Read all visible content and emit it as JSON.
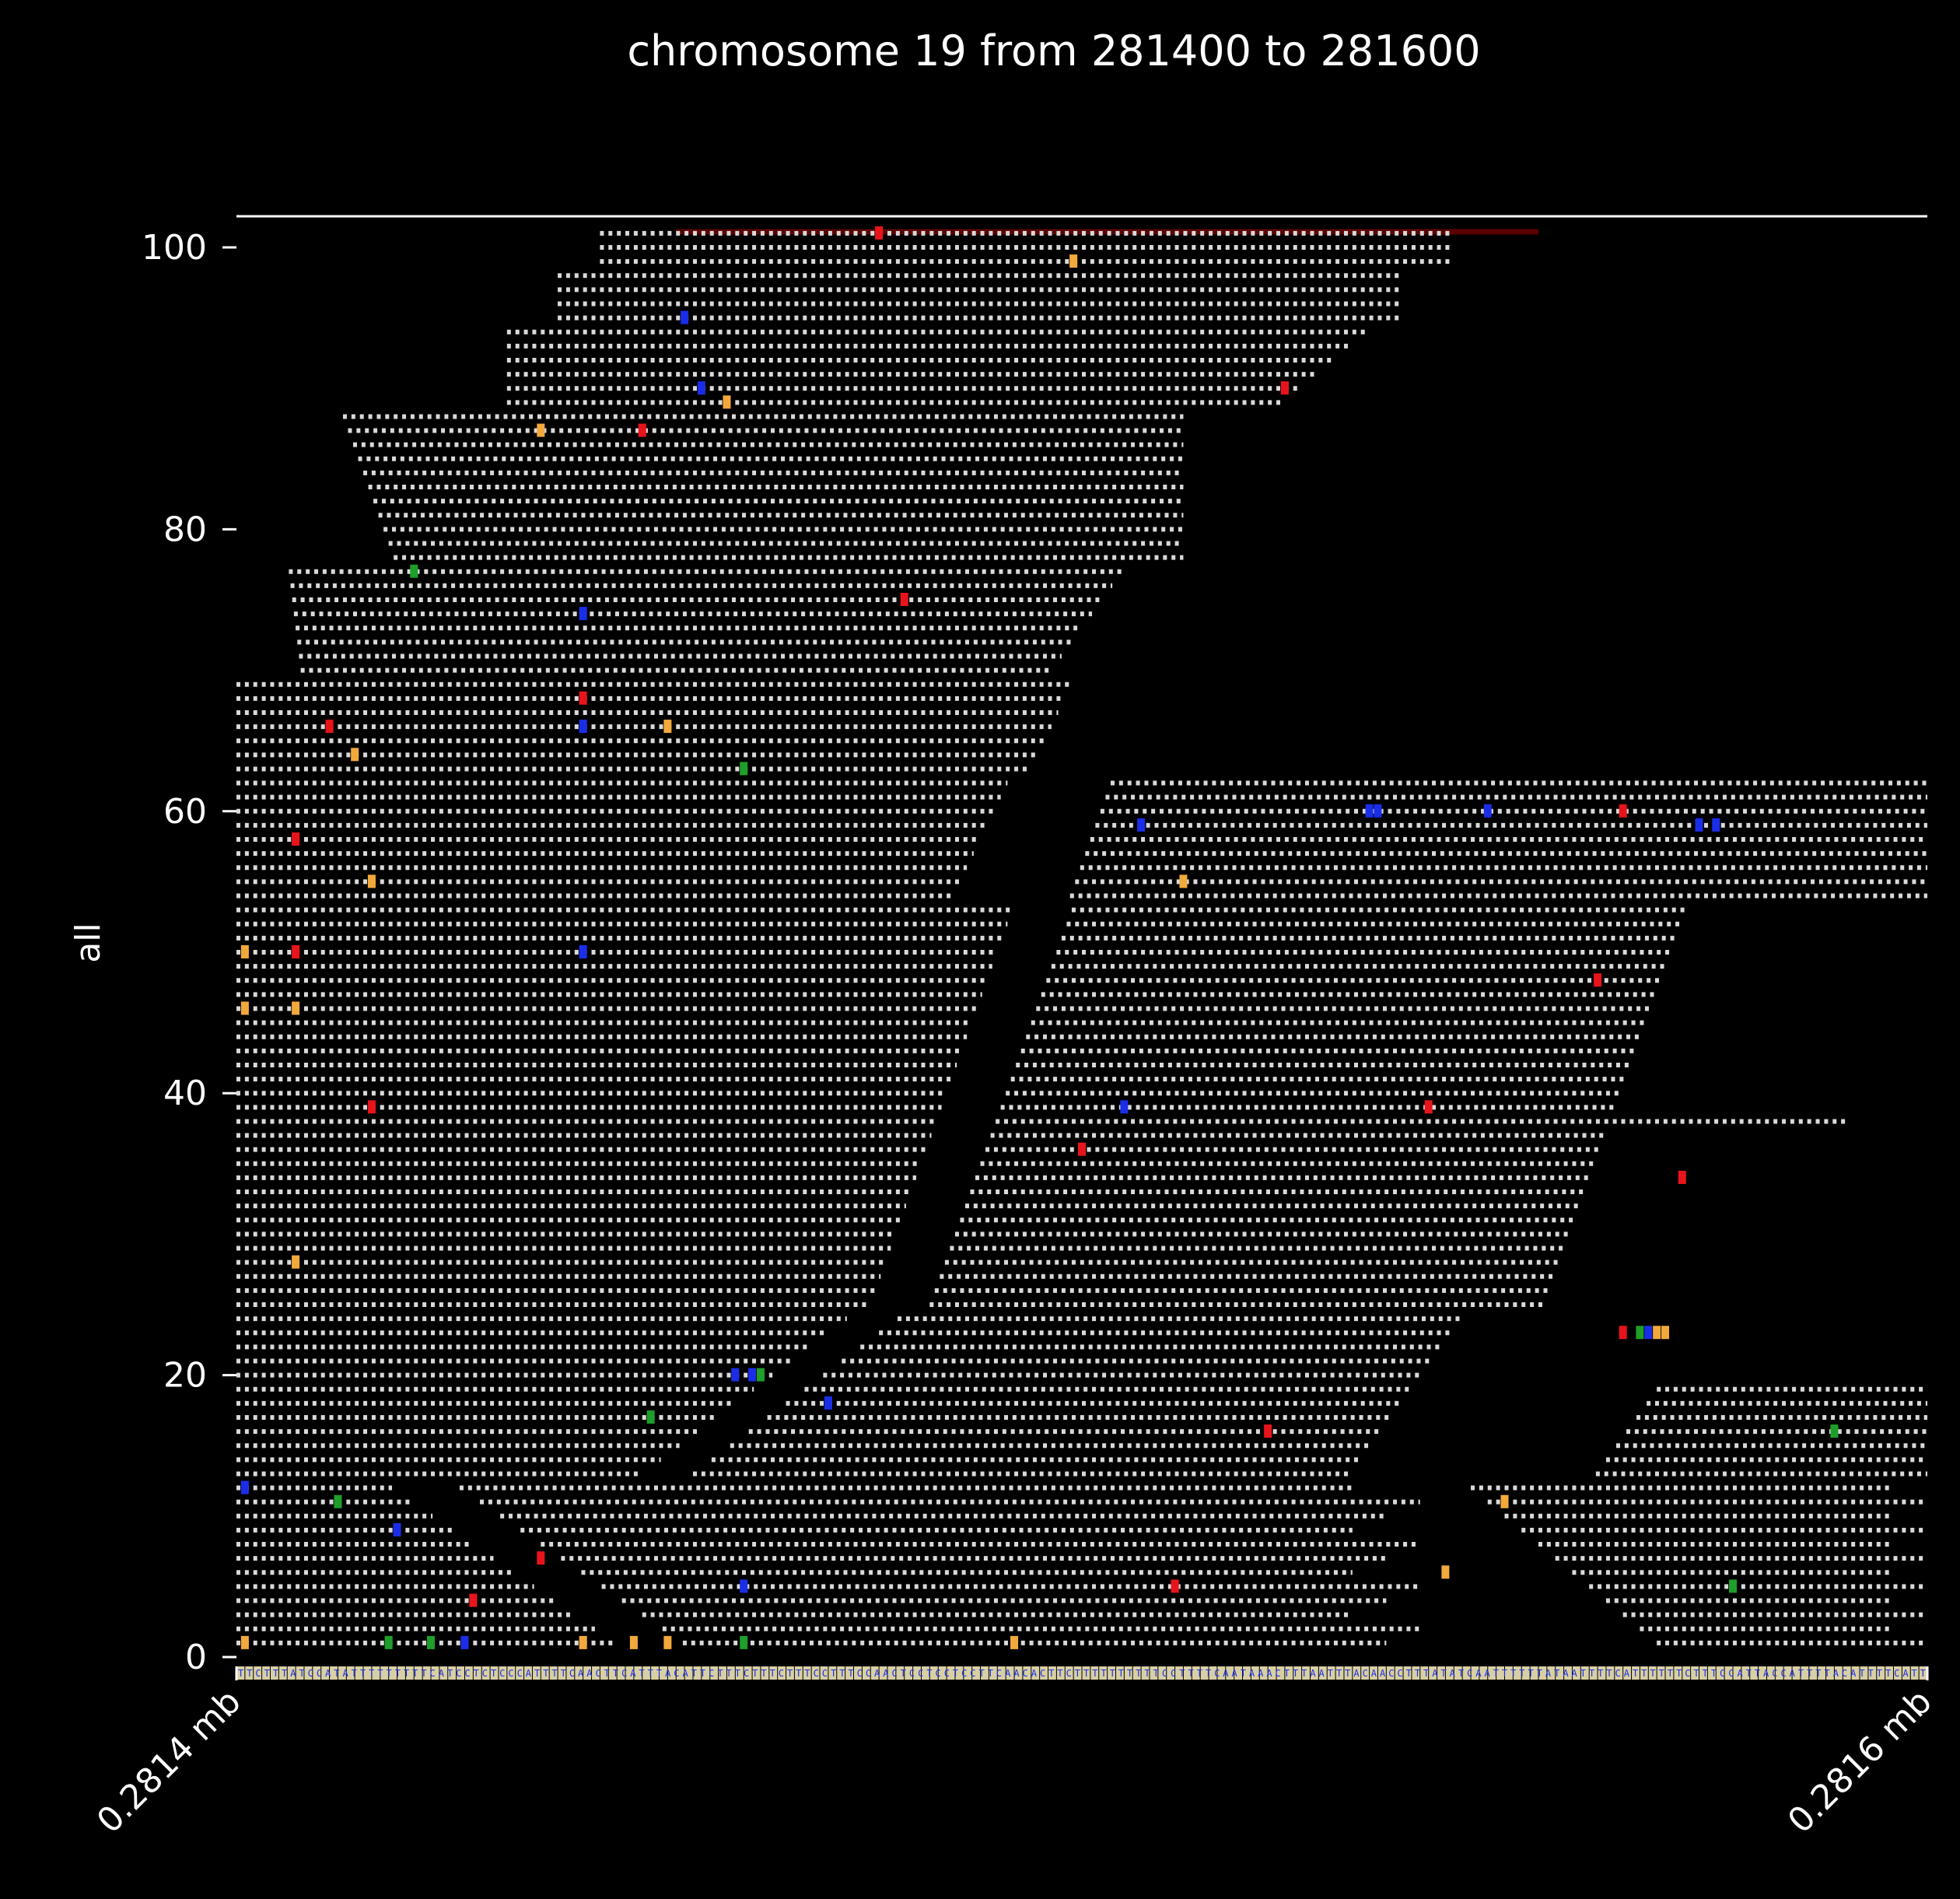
{
  "chart_data": {
    "type": "scatter",
    "title": "chromosome 19 from 281400 to 281600",
    "xlabel": "",
    "ylabel": "all",
    "xlim": [
      281400,
      281600
    ],
    "ylim": [
      0,
      102
    ],
    "x_ticks": [
      {
        "value": 281400,
        "label": "0.2814 mb"
      },
      {
        "value": 281600,
        "label": "0.2816 mb"
      }
    ],
    "y_ticks": [
      0,
      20,
      40,
      60,
      80,
      100
    ],
    "grid": false,
    "legend": "none",
    "colors": {
      "background": "#000000",
      "match": "#d9d9d9",
      "A": "#e8141c",
      "C": "#1a2ee8",
      "G": "#f2a93b",
      "T": "#1e9e2a",
      "coverage_band": "#5a0000"
    },
    "mismatches": [
      {
        "y": 101,
        "x": 281476,
        "base": "A"
      },
      {
        "y": 99,
        "x": 281499,
        "base": "G"
      },
      {
        "y": 95,
        "x": 281453,
        "base": "C"
      },
      {
        "y": 90,
        "x": 281524,
        "base": "A"
      },
      {
        "y": 90,
        "x": 281455,
        "base": "C"
      },
      {
        "y": 89,
        "x": 281458,
        "base": "G"
      },
      {
        "y": 87,
        "x": 281436,
        "base": "G"
      },
      {
        "y": 87,
        "x": 281448,
        "base": "A"
      },
      {
        "y": 77,
        "x": 281421,
        "base": "T"
      },
      {
        "y": 75,
        "x": 281479,
        "base": "A"
      },
      {
        "y": 74,
        "x": 281441,
        "base": "C"
      },
      {
        "y": 68,
        "x": 281441,
        "base": "A"
      },
      {
        "y": 66,
        "x": 281411,
        "base": "A"
      },
      {
        "y": 66,
        "x": 281441,
        "base": "C"
      },
      {
        "y": 66,
        "x": 281451,
        "base": "G"
      },
      {
        "y": 64,
        "x": 281414,
        "base": "G"
      },
      {
        "y": 63,
        "x": 281460,
        "base": "T"
      },
      {
        "y": 60,
        "x": 281534,
        "base": "C"
      },
      {
        "y": 60,
        "x": 281535,
        "base": "C"
      },
      {
        "y": 60,
        "x": 281548,
        "base": "C"
      },
      {
        "y": 60,
        "x": 281564,
        "base": "A"
      },
      {
        "y": 59,
        "x": 281507,
        "base": "C"
      },
      {
        "y": 59,
        "x": 281573,
        "base": "C"
      },
      {
        "y": 59,
        "x": 281575,
        "base": "C"
      },
      {
        "y": 58,
        "x": 281407,
        "base": "A"
      },
      {
        "y": 55,
        "x": 281416,
        "base": "G"
      },
      {
        "y": 55,
        "x": 281512,
        "base": "G"
      },
      {
        "y": 50,
        "x": 281401,
        "base": "G"
      },
      {
        "y": 50,
        "x": 281407,
        "base": "A"
      },
      {
        "y": 50,
        "x": 281441,
        "base": "C"
      },
      {
        "y": 48,
        "x": 281561,
        "base": "A"
      },
      {
        "y": 46,
        "x": 281401,
        "base": "G"
      },
      {
        "y": 46,
        "x": 281407,
        "base": "G"
      },
      {
        "y": 39,
        "x": 281416,
        "base": "A"
      },
      {
        "y": 39,
        "x": 281505,
        "base": "C"
      },
      {
        "y": 39,
        "x": 281541,
        "base": "A"
      },
      {
        "y": 36,
        "x": 281500,
        "base": "A"
      },
      {
        "y": 34,
        "x": 281571,
        "base": "A"
      },
      {
        "y": 28,
        "x": 281407,
        "base": "G"
      },
      {
        "y": 23,
        "x": 281564,
        "base": "A"
      },
      {
        "y": 23,
        "x": 281566,
        "base": "T"
      },
      {
        "y": 23,
        "x": 281567,
        "base": "C"
      },
      {
        "y": 23,
        "x": 281568,
        "base": "G"
      },
      {
        "y": 23,
        "x": 281569,
        "base": "G"
      },
      {
        "y": 20,
        "x": 281459,
        "base": "C"
      },
      {
        "y": 20,
        "x": 281461,
        "base": "C"
      },
      {
        "y": 20,
        "x": 281462,
        "base": "T"
      },
      {
        "y": 18,
        "x": 281470,
        "base": "C"
      },
      {
        "y": 17,
        "x": 281449,
        "base": "T"
      },
      {
        "y": 16,
        "x": 281522,
        "base": "A"
      },
      {
        "y": 16,
        "x": 281589,
        "base": "T"
      },
      {
        "y": 12,
        "x": 281401,
        "base": "C"
      },
      {
        "y": 11,
        "x": 281412,
        "base": "T"
      },
      {
        "y": 11,
        "x": 281550,
        "base": "G"
      },
      {
        "y": 9,
        "x": 281419,
        "base": "C"
      },
      {
        "y": 7,
        "x": 281436,
        "base": "A"
      },
      {
        "y": 6,
        "x": 281543,
        "base": "G"
      },
      {
        "y": 5,
        "x": 281460,
        "base": "C"
      },
      {
        "y": 5,
        "x": 281511,
        "base": "A"
      },
      {
        "y": 5,
        "x": 281577,
        "base": "T"
      },
      {
        "y": 4,
        "x": 281428,
        "base": "A"
      },
      {
        "y": 1,
        "x": 281401,
        "base": "G"
      },
      {
        "y": 1,
        "x": 281418,
        "base": "T"
      },
      {
        "y": 1,
        "x": 281423,
        "base": "T"
      },
      {
        "y": 1,
        "x": 281427,
        "base": "C"
      },
      {
        "y": 1,
        "x": 281441,
        "base": "G"
      },
      {
        "y": 1,
        "x": 281447,
        "base": "G"
      },
      {
        "y": 1,
        "x": 281451,
        "base": "G"
      },
      {
        "y": 1,
        "x": 281460,
        "base": "T"
      },
      {
        "y": 1,
        "x": 281492,
        "base": "G"
      }
    ],
    "reference_sequence": "TTCTTTATCCATATTTTTTTTTCATCCTCTCCCATTTTCAACTTCATTTACATTCTTTCTTTCTTTCCTTTCCAACTCCTCCTCCTTCAACACTTCTTTTTTTTTTCCTTTTCAATAAACTTTAATTTACAACCTTTATATCAATTTTTTATAATTTTCATTTTTTCTTTCCATTACCATTTTACATTTTCATT"
  }
}
